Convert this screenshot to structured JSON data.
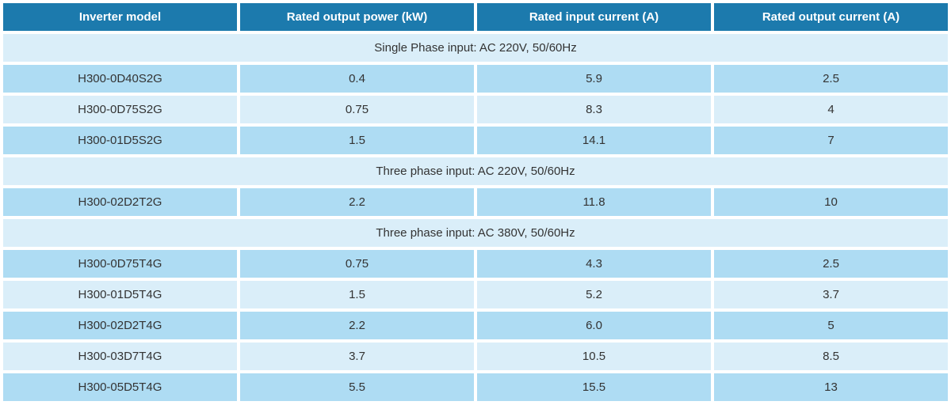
{
  "table": {
    "headers": [
      {
        "label": "Inverter model"
      },
      {
        "label": "Rated output power (kW)"
      },
      {
        "label": "Rated input current (A)"
      },
      {
        "label": "Rated output current (A)"
      }
    ],
    "sections": [
      {
        "title": "Single Phase input: AC 220V, 50/60Hz",
        "rows": [
          {
            "model": "H300-0D40S2G",
            "output_power_kw": "0.4",
            "input_current_a": "5.9",
            "output_current_a": "2.5"
          },
          {
            "model": "H300-0D75S2G",
            "output_power_kw": "0.75",
            "input_current_a": "8.3",
            "output_current_a": "4"
          },
          {
            "model": "H300-01D5S2G",
            "output_power_kw": "1.5",
            "input_current_a": "14.1",
            "output_current_a": "7"
          }
        ]
      },
      {
        "title": "Three phase input: AC 220V, 50/60Hz",
        "rows": [
          {
            "model": "H300-02D2T2G",
            "output_power_kw": "2.2",
            "input_current_a": "11.8",
            "output_current_a": "10"
          }
        ]
      },
      {
        "title": "Three phase input: AC 380V, 50/60Hz",
        "rows": [
          {
            "model": "H300-0D75T4G",
            "output_power_kw": "0.75",
            "input_current_a": "4.3",
            "output_current_a": "2.5"
          },
          {
            "model": "H300-01D5T4G",
            "output_power_kw": "1.5",
            "input_current_a": "5.2",
            "output_current_a": "3.7"
          },
          {
            "model": "H300-02D2T4G",
            "output_power_kw": "2.2",
            "input_current_a": "6.0",
            "output_current_a": "5"
          },
          {
            "model": "H300-03D7T4G",
            "output_power_kw": "3.7",
            "input_current_a": "10.5",
            "output_current_a": "8.5"
          },
          {
            "model": "H300-05D5T4G",
            "output_power_kw": "5.5",
            "input_current_a": "15.5",
            "output_current_a": "13"
          }
        ]
      }
    ]
  },
  "colors": {
    "header_bg": "#1c7aad",
    "header_text": "#ffffff",
    "row_dark": "#aedcf3",
    "row_light": "#daeef9",
    "section_bg": "#daeef9",
    "body_text": "#333333",
    "gap": "#ffffff"
  }
}
